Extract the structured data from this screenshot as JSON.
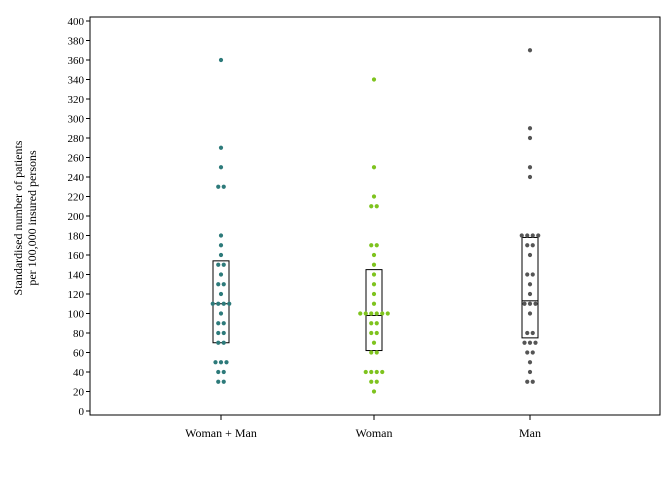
{
  "chart_data": {
    "type": "scatter",
    "subtype": "dot-plot-with-boxes",
    "ylabel_lines": [
      "Standardised number of patients",
      "per 100,000 insured persons"
    ],
    "ylim": [
      0,
      400
    ],
    "yticks": [
      0,
      20,
      40,
      60,
      80,
      100,
      120,
      140,
      160,
      180,
      200,
      220,
      240,
      260,
      280,
      300,
      320,
      340,
      360,
      380,
      400
    ],
    "grid": false,
    "legend": "none",
    "categories": [
      "Woman + Man",
      "Woman",
      "Man"
    ],
    "series": [
      {
        "category": "Woman + Man",
        "color": "#2d7a7a",
        "values": [
          30,
          30,
          40,
          40,
          50,
          50,
          50,
          70,
          70,
          80,
          80,
          90,
          90,
          100,
          110,
          110,
          110,
          110,
          120,
          130,
          130,
          140,
          150,
          150,
          160,
          170,
          180,
          230,
          230,
          250,
          270,
          360
        ],
        "box": {
          "q1": 70,
          "median": 110,
          "q3": 154
        }
      },
      {
        "category": "Woman",
        "color": "#7ec31e",
        "values": [
          20,
          30,
          30,
          40,
          40,
          40,
          40,
          60,
          60,
          70,
          80,
          80,
          90,
          90,
          100,
          100,
          100,
          100,
          100,
          100,
          110,
          120,
          130,
          140,
          150,
          160,
          170,
          170,
          210,
          210,
          220,
          250,
          340
        ],
        "box": {
          "q1": 62,
          "median": 98,
          "q3": 145
        }
      },
      {
        "category": "Man",
        "color": "#555555",
        "values": [
          30,
          30,
          40,
          50,
          60,
          60,
          70,
          70,
          70,
          80,
          80,
          100,
          110,
          110,
          110,
          120,
          130,
          140,
          140,
          160,
          170,
          170,
          180,
          180,
          180,
          180,
          240,
          250,
          280,
          290,
          370
        ],
        "box": {
          "q1": 75,
          "median": 113,
          "q3": 178
        }
      }
    ]
  }
}
